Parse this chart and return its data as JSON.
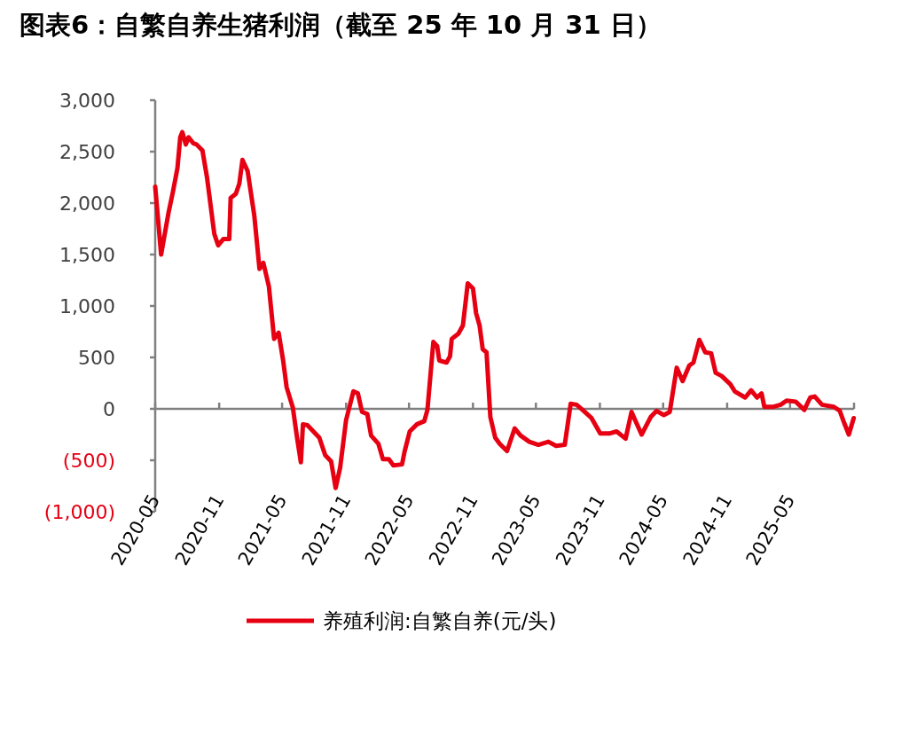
{
  "chart_data": {
    "type": "line",
    "title": "图表6：自繁自养生猪利润（截至 25 年 10 月 31 日）",
    "x": [
      "2020-05-01",
      "2020-05-18",
      "2020-06-08",
      "2020-06-21",
      "2020-07-04",
      "2020-07-12",
      "2020-07-18",
      "2020-07-28",
      "2020-08-05",
      "2020-08-19",
      "2020-08-28",
      "2020-09-14",
      "2020-09-27",
      "2020-10-18",
      "2020-10-29",
      "2020-11-13",
      "2020-11-30",
      "2020-12-04",
      "2020-12-19",
      "2020-12-29",
      "2021-01-07",
      "2021-01-22",
      "2021-02-10",
      "2021-02-25",
      "2021-03-08",
      "2021-03-24",
      "2021-04-08",
      "2021-04-21",
      "2021-05-04",
      "2021-05-14",
      "2021-06-01",
      "2021-06-13",
      "2021-06-24",
      "2021-06-30",
      "2021-07-13",
      "2021-07-30",
      "2021-08-16",
      "2021-09-02",
      "2021-09-19",
      "2021-10-02",
      "2021-10-15",
      "2021-11-01",
      "2021-11-22",
      "2021-12-05",
      "2021-12-17",
      "2022-01-01",
      "2022-01-12",
      "2022-02-02",
      "2022-02-15",
      "2022-03-04",
      "2022-03-17",
      "2022-04-11",
      "2022-04-18",
      "2022-05-03",
      "2022-05-24",
      "2022-06-14",
      "2022-06-23",
      "2022-07-10",
      "2022-07-21",
      "2022-07-27",
      "2022-08-17",
      "2022-08-27",
      "2022-09-01",
      "2022-09-20",
      "2022-10-03",
      "2022-10-17",
      "2022-11-01",
      "2022-11-10",
      "2022-11-20",
      "2022-11-29",
      "2022-12-10",
      "2022-12-21",
      "2023-01-04",
      "2023-01-17",
      "2023-02-07",
      "2023-03-01",
      "2023-03-18",
      "2023-04-12",
      "2023-05-08",
      "2023-06-06",
      "2023-06-28",
      "2023-07-23",
      "2023-08-09",
      "2023-08-26",
      "2023-09-12",
      "2023-10-08",
      "2023-11-02",
      "2023-11-28",
      "2023-12-19",
      "2024-01-14",
      "2024-01-31",
      "2024-02-29",
      "2024-03-26",
      "2024-04-12",
      "2024-05-03",
      "2024-05-20",
      "2024-06-09",
      "2024-06-26",
      "2024-07-15",
      "2024-07-27",
      "2024-08-13",
      "2024-08-30",
      "2024-09-16",
      "2024-09-29",
      "2024-10-16",
      "2024-11-10",
      "2024-11-23",
      "2024-12-23",
      "2025-01-09",
      "2025-01-26",
      "2025-02-08",
      "2025-02-16",
      "2025-03-14",
      "2025-04-04",
      "2025-04-21",
      "2025-05-17",
      "2025-06-11",
      "2025-06-28",
      "2025-07-11",
      "2025-08-01",
      "2025-09-04",
      "2025-09-21",
      "2025-10-04",
      "2025-10-17",
      "2025-10-31"
    ],
    "series": [
      {
        "name": "养殖利润:自繁自养(元/头)",
        "color": "#e60012",
        "values": [
          2160,
          1500,
          1900,
          2110,
          2340,
          2640,
          2690,
          2570,
          2640,
          2580,
          2570,
          2510,
          2250,
          1700,
          1590,
          1650,
          1650,
          2050,
          2090,
          2190,
          2420,
          2310,
          1880,
          1360,
          1420,
          1190,
          680,
          740,
          470,
          210,
          10,
          -280,
          -520,
          -150,
          -160,
          -220,
          -280,
          -450,
          -510,
          -770,
          -570,
          -110,
          170,
          150,
          -30,
          -50,
          -260,
          -340,
          -490,
          -490,
          -550,
          -540,
          -420,
          -220,
          -150,
          -120,
          -10,
          650,
          610,
          470,
          450,
          510,
          680,
          730,
          810,
          1220,
          1170,
          930,
          810,
          580,
          550,
          -80,
          -280,
          -340,
          -410,
          -190,
          -260,
          -320,
          -350,
          -320,
          -360,
          -350,
          50,
          40,
          -10,
          -90,
          -240,
          -240,
          -220,
          -290,
          -30,
          -250,
          -80,
          -20,
          -60,
          -30,
          400,
          270,
          420,
          450,
          670,
          550,
          540,
          350,
          320,
          240,
          170,
          110,
          180,
          110,
          150,
          20,
          20,
          40,
          80,
          70,
          -10,
          110,
          120,
          40,
          20,
          -20,
          -140,
          -250,
          -90
        ]
      }
    ],
    "xlim": [
      "2020-05",
      "2025-11"
    ],
    "xticks": [
      {
        "value": "2020-05",
        "label": "2020-05"
      },
      {
        "value": "2020-11",
        "label": "2020-11"
      },
      {
        "value": "2021-05",
        "label": "2021-05"
      },
      {
        "value": "2021-11",
        "label": "2021-11"
      },
      {
        "value": "2022-05",
        "label": "2022-05"
      },
      {
        "value": "2022-11",
        "label": "2022-11"
      },
      {
        "value": "2023-05",
        "label": "2023-05"
      },
      {
        "value": "2023-11",
        "label": "2023-11"
      },
      {
        "value": "2024-05",
        "label": "2024-05"
      },
      {
        "value": "2024-11",
        "label": "2024-11"
      },
      {
        "value": "2025-05",
        "label": "2025-05"
      },
      {
        "value": "2025-11",
        "label": null
      }
    ],
    "ylim": [
      -1000,
      3000
    ],
    "yticks": [
      {
        "value": 3000,
        "label": "3,000"
      },
      {
        "value": 2500,
        "label": "2,500"
      },
      {
        "value": 2000,
        "label": "2,000"
      },
      {
        "value": 1500,
        "label": "1,500"
      },
      {
        "value": 1000,
        "label": "1,000"
      },
      500,
      0,
      {
        "value": -500,
        "label": "(500)"
      },
      {
        "value": -1000,
        "label": "(1,000)"
      }
    ],
    "legend": "bottom"
  }
}
